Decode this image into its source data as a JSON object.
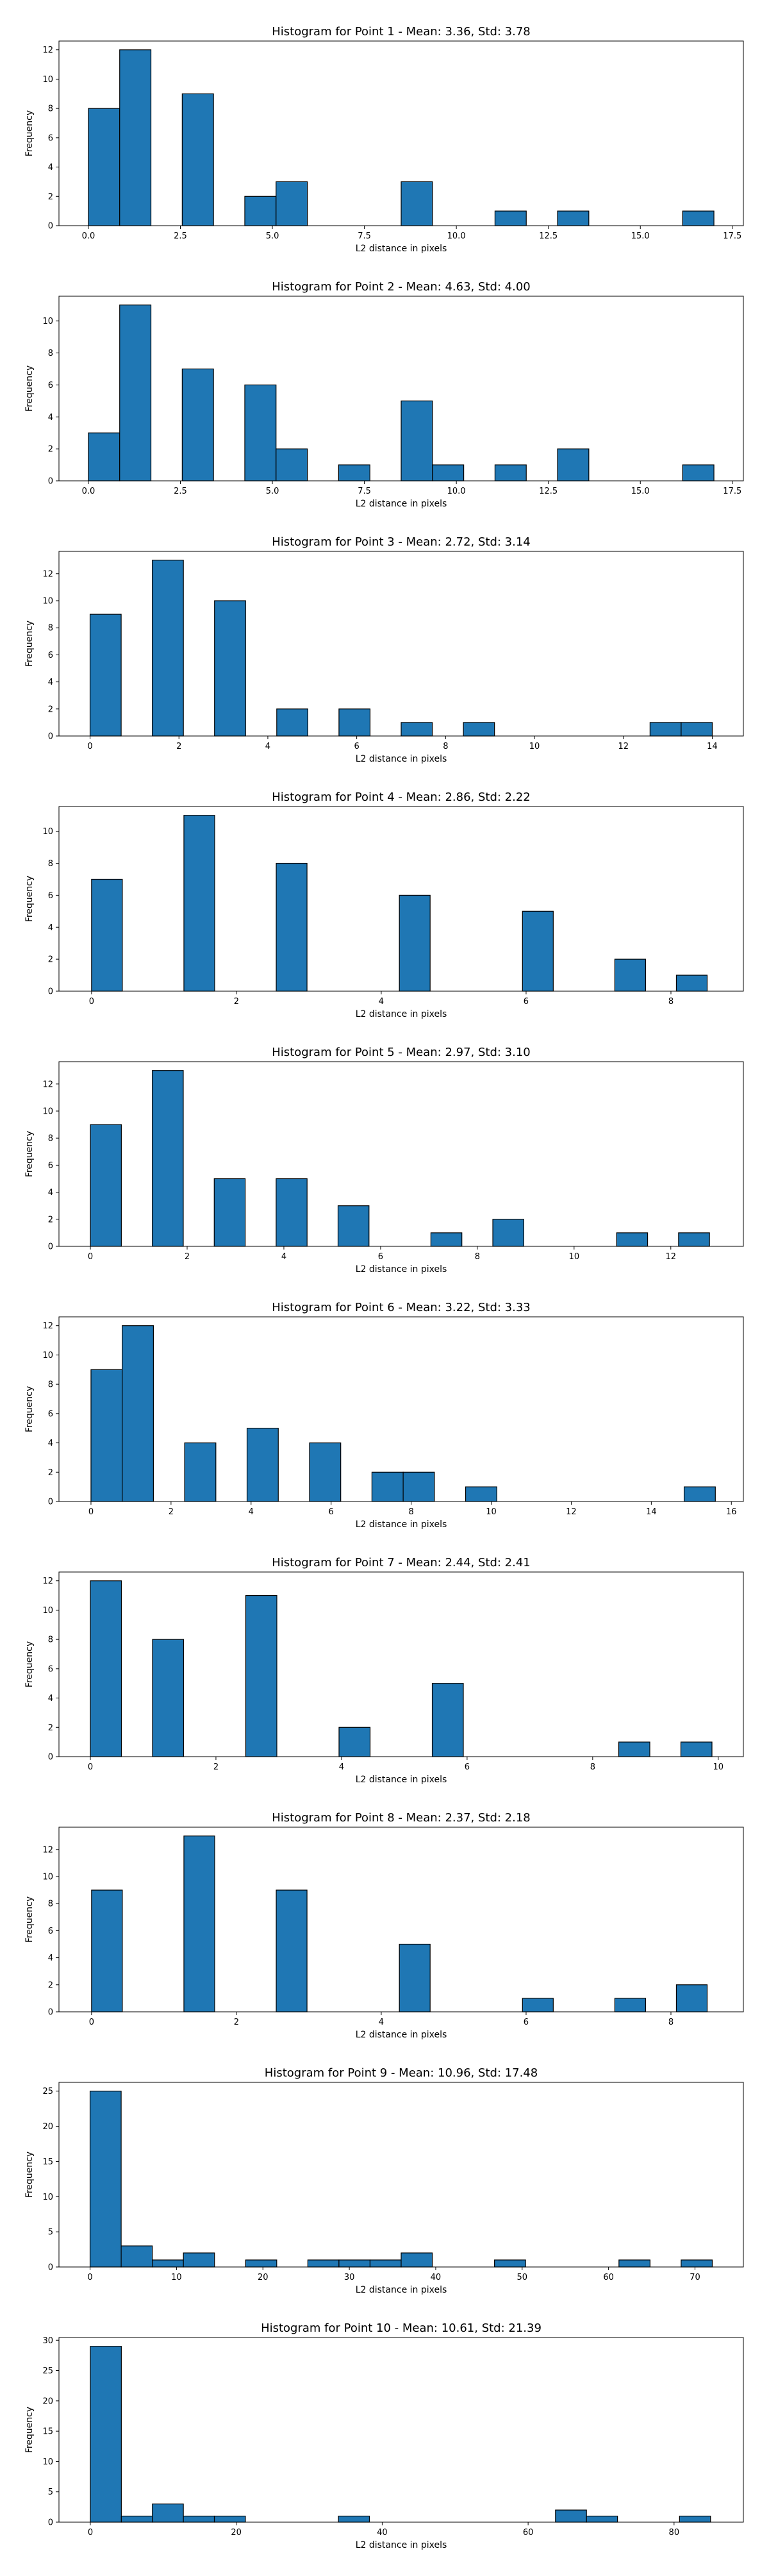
{
  "chart_data": [
    {
      "type": "bar",
      "title": "Histogram for Point 1 - Mean: 3.36, Std: 3.78",
      "xlabel": "L2 distance in pixels",
      "ylabel": "Frequency",
      "xlim": [
        -0.8,
        17.8
      ],
      "ylim": [
        0,
        12.6
      ],
      "xticks": [
        0,
        2.5,
        5,
        7.5,
        10,
        12.5,
        15,
        17.5
      ],
      "xtick_labels": [
        "0.0",
        "2.5",
        "5.0",
        "7.5",
        "10.0",
        "12.5",
        "15.0",
        "17.5"
      ],
      "yticks": [
        0,
        2,
        4,
        6,
        8,
        10,
        12
      ],
      "bin_edges": [
        0,
        0.85,
        1.7,
        2.55,
        3.4,
        4.25,
        5.1,
        5.95,
        6.8,
        7.65,
        8.5,
        9.35,
        10.2,
        11.05,
        11.9,
        12.75,
        13.6,
        14.45,
        15.3,
        16.15,
        17.0
      ],
      "values": [
        8,
        12,
        0,
        9,
        0,
        2,
        3,
        0,
        0,
        0,
        3,
        0,
        0,
        1,
        0,
        1,
        0,
        0,
        0,
        1
      ],
      "bar_color": "#1f77b4",
      "edge_color": "#000000",
      "grid": false
    },
    {
      "type": "bar",
      "title": "Histogram for Point 2 - Mean: 4.63, Std: 4.00",
      "xlabel": "L2 distance in pixels",
      "ylabel": "Frequency",
      "xlim": [
        -0.8,
        17.8
      ],
      "ylim": [
        0,
        11.55
      ],
      "xticks": [
        0,
        2.5,
        5,
        7.5,
        10,
        12.5,
        15,
        17.5
      ],
      "xtick_labels": [
        "0.0",
        "2.5",
        "5.0",
        "7.5",
        "10.0",
        "12.5",
        "15.0",
        "17.5"
      ],
      "yticks": [
        0,
        2,
        4,
        6,
        8,
        10
      ],
      "bin_edges": [
        0,
        0.85,
        1.7,
        2.55,
        3.4,
        4.25,
        5.1,
        5.95,
        6.8,
        7.65,
        8.5,
        9.35,
        10.2,
        11.05,
        11.9,
        12.75,
        13.6,
        14.45,
        15.3,
        16.15,
        17.0
      ],
      "values": [
        3,
        11,
        0,
        7,
        0,
        6,
        2,
        0,
        1,
        0,
        5,
        1,
        0,
        1,
        0,
        2,
        0,
        0,
        0,
        1
      ],
      "bar_color": "#1f77b4",
      "edge_color": "#000000",
      "grid": false
    },
    {
      "type": "bar",
      "title": "Histogram for Point 3 - Mean: 2.72, Std: 3.14",
      "xlabel": "L2 distance in pixels",
      "ylabel": "Frequency",
      "xlim": [
        -0.7,
        14.7
      ],
      "ylim": [
        0,
        13.65
      ],
      "xticks": [
        0,
        2,
        4,
        6,
        8,
        10,
        12,
        14
      ],
      "xtick_labels": [
        "0",
        "2",
        "4",
        "6",
        "8",
        "10",
        "12",
        "14"
      ],
      "yticks": [
        0,
        2,
        4,
        6,
        8,
        10,
        12
      ],
      "bin_edges": [
        0,
        0.7,
        1.4,
        2.1,
        2.8,
        3.5,
        4.2,
        4.9,
        5.6,
        6.3,
        7.0,
        7.7,
        8.4,
        9.1,
        9.8,
        10.5,
        11.2,
        11.9,
        12.6,
        13.3,
        14.0
      ],
      "values": [
        9,
        0,
        13,
        0,
        10,
        0,
        2,
        0,
        2,
        0,
        1,
        0,
        1,
        0,
        0,
        0,
        0,
        0,
        1,
        1
      ],
      "bar_color": "#1f77b4",
      "edge_color": "#000000",
      "grid": false
    },
    {
      "type": "bar",
      "title": "Histogram for Point 4 - Mean: 2.86, Std: 2.22",
      "xlabel": "L2 distance in pixels",
      "ylabel": "Frequency",
      "xlim": [
        -0.45,
        9.0
      ],
      "ylim": [
        0,
        11.55
      ],
      "xticks": [
        0,
        2,
        4,
        6,
        8
      ],
      "xtick_labels": [
        "0",
        "2",
        "4",
        "6",
        "8"
      ],
      "yticks": [
        0,
        2,
        4,
        6,
        8,
        10
      ],
      "bin_edges": [
        0,
        0.425,
        0.85,
        1.275,
        1.7,
        2.125,
        2.55,
        2.975,
        3.4,
        3.825,
        4.25,
        4.675,
        5.1,
        5.525,
        5.95,
        6.375,
        6.8,
        7.225,
        7.65,
        8.075,
        8.5
      ],
      "values": [
        7,
        0,
        0,
        11,
        0,
        0,
        8,
        0,
        0,
        0,
        6,
        0,
        0,
        0,
        5,
        0,
        0,
        2,
        0,
        1
      ],
      "bar_color": "#1f77b4",
      "edge_color": "#000000",
      "grid": false
    },
    {
      "type": "bar",
      "title": "Histogram for Point 5 - Mean: 2.97, Std: 3.10",
      "xlabel": "L2 distance in pixels",
      "ylabel": "Frequency",
      "xlim": [
        -0.65,
        13.5
      ],
      "ylim": [
        0,
        13.65
      ],
      "xticks": [
        0,
        2,
        4,
        6,
        8,
        10,
        12
      ],
      "xtick_labels": [
        "0",
        "2",
        "4",
        "6",
        "8",
        "10",
        "12"
      ],
      "yticks": [
        0,
        2,
        4,
        6,
        8,
        10,
        12
      ],
      "bin_edges": [
        0,
        0.64,
        1.28,
        1.92,
        2.56,
        3.2,
        3.84,
        4.48,
        5.12,
        5.76,
        6.4,
        7.04,
        7.68,
        8.32,
        8.96,
        9.6,
        10.24,
        10.88,
        11.52,
        12.16,
        12.8
      ],
      "values": [
        9,
        0,
        13,
        0,
        5,
        0,
        5,
        0,
        3,
        0,
        0,
        1,
        0,
        2,
        0,
        0,
        0,
        1,
        0,
        1
      ],
      "bar_color": "#1f77b4",
      "edge_color": "#000000",
      "grid": false
    },
    {
      "type": "bar",
      "title": "Histogram for Point 6 - Mean: 3.22, Std: 3.33",
      "xlabel": "L2 distance in pixels",
      "ylabel": "Frequency",
      "xlim": [
        -0.8,
        16.3
      ],
      "ylim": [
        0,
        12.6
      ],
      "xticks": [
        0,
        2,
        4,
        6,
        8,
        10,
        12,
        14,
        16
      ],
      "xtick_labels": [
        "0",
        "2",
        "4",
        "6",
        "8",
        "10",
        "12",
        "14",
        "16"
      ],
      "yticks": [
        0,
        2,
        4,
        6,
        8,
        10,
        12
      ],
      "bin_edges": [
        0,
        0.78,
        1.56,
        2.34,
        3.12,
        3.9,
        4.68,
        5.46,
        6.24,
        7.02,
        7.8,
        8.58,
        9.36,
        10.14,
        10.92,
        11.7,
        12.48,
        13.26,
        14.04,
        14.82,
        15.6
      ],
      "values": [
        9,
        12,
        0,
        4,
        0,
        5,
        0,
        4,
        0,
        2,
        2,
        0,
        1,
        0,
        0,
        0,
        0,
        0,
        0,
        1
      ],
      "bar_color": "#1f77b4",
      "edge_color": "#000000",
      "grid": false
    },
    {
      "type": "bar",
      "title": "Histogram for Point 7 - Mean: 2.44, Std: 2.41",
      "xlabel": "L2 distance in pixels",
      "ylabel": "Frequency",
      "xlim": [
        -0.5,
        10.4
      ],
      "ylim": [
        0,
        12.6
      ],
      "xticks": [
        0,
        2,
        4,
        6,
        8,
        10
      ],
      "xtick_labels": [
        "0",
        "2",
        "4",
        "6",
        "8",
        "10"
      ],
      "yticks": [
        0,
        2,
        4,
        6,
        8,
        10,
        12
      ],
      "bin_edges": [
        0,
        0.495,
        0.99,
        1.485,
        1.98,
        2.475,
        2.97,
        3.465,
        3.96,
        4.455,
        4.95,
        5.445,
        5.94,
        6.435,
        6.93,
        7.425,
        7.92,
        8.415,
        8.91,
        9.405,
        9.9
      ],
      "values": [
        12,
        0,
        8,
        0,
        0,
        11,
        0,
        0,
        2,
        0,
        0,
        5,
        0,
        0,
        0,
        0,
        0,
        1,
        0,
        1
      ],
      "bar_color": "#1f77b4",
      "edge_color": "#000000",
      "grid": false
    },
    {
      "type": "bar",
      "title": "Histogram for Point 8 - Mean: 2.37, Std: 2.18",
      "xlabel": "L2 distance in pixels",
      "ylabel": "Frequency",
      "xlim": [
        -0.45,
        9.0
      ],
      "ylim": [
        0,
        13.65
      ],
      "xticks": [
        0,
        2,
        4,
        6,
        8
      ],
      "xtick_labels": [
        "0",
        "2",
        "4",
        "6",
        "8"
      ],
      "yticks": [
        0,
        2,
        4,
        6,
        8,
        10,
        12
      ],
      "bin_edges": [
        0,
        0.425,
        0.85,
        1.275,
        1.7,
        2.125,
        2.55,
        2.975,
        3.4,
        3.825,
        4.25,
        4.675,
        5.1,
        5.525,
        5.95,
        6.375,
        6.8,
        7.225,
        7.65,
        8.075,
        8.5
      ],
      "values": [
        9,
        0,
        0,
        13,
        0,
        0,
        9,
        0,
        0,
        0,
        5,
        0,
        0,
        0,
        1,
        0,
        0,
        1,
        0,
        2
      ],
      "bar_color": "#1f77b4",
      "edge_color": "#000000",
      "grid": false
    },
    {
      "type": "bar",
      "title": "Histogram for Point 9 - Mean: 10.96, Std: 17.48",
      "xlabel": "L2 distance in pixels",
      "ylabel": "Frequency",
      "xlim": [
        -3.6,
        75.6
      ],
      "ylim": [
        0,
        26.25
      ],
      "xticks": [
        0,
        10,
        20,
        30,
        40,
        50,
        60,
        70
      ],
      "xtick_labels": [
        "0",
        "10",
        "20",
        "30",
        "40",
        "50",
        "60",
        "70"
      ],
      "yticks": [
        0,
        5,
        10,
        15,
        20,
        25
      ],
      "bin_edges": [
        0,
        3.6,
        7.2,
        10.8,
        14.4,
        18.0,
        21.6,
        25.2,
        28.8,
        32.4,
        36.0,
        39.6,
        43.2,
        46.8,
        50.4,
        54.0,
        57.6,
        61.2,
        64.8,
        68.4,
        72.0
      ],
      "values": [
        25,
        3,
        1,
        2,
        0,
        1,
        0,
        1,
        1,
        1,
        2,
        0,
        0,
        1,
        0,
        0,
        0,
        1,
        0,
        1
      ],
      "bar_color": "#1f77b4",
      "edge_color": "#000000",
      "grid": false
    },
    {
      "type": "bar",
      "title": "Histogram for Point 10 - Mean: 10.61, Std: 21.39",
      "xlabel": "L2 distance in pixels",
      "ylabel": "Frequency",
      "xlim": [
        -4.3,
        89.5
      ],
      "ylim": [
        0,
        30.45
      ],
      "xticks": [
        0,
        20,
        40,
        60,
        80
      ],
      "xtick_labels": [
        "0",
        "20",
        "40",
        "60",
        "80"
      ],
      "yticks": [
        0,
        5,
        10,
        15,
        20,
        25,
        30
      ],
      "bin_edges": [
        0,
        4.25,
        8.5,
        12.75,
        17.0,
        21.25,
        25.5,
        29.75,
        34.0,
        38.25,
        42.5,
        46.75,
        51.0,
        55.25,
        59.5,
        63.75,
        68.0,
        72.25,
        76.5,
        80.75,
        85.0
      ],
      "values": [
        29,
        1,
        3,
        1,
        1,
        0,
        0,
        0,
        1,
        0,
        0,
        0,
        0,
        0,
        0,
        2,
        1,
        0,
        0,
        1
      ],
      "bar_color": "#1f77b4",
      "edge_color": "#000000",
      "grid": false
    }
  ]
}
